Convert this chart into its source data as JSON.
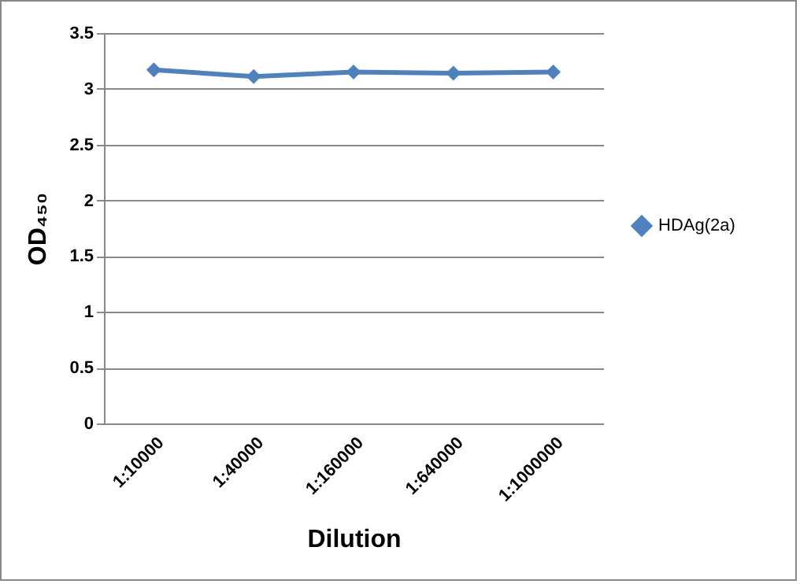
{
  "chart_data": {
    "type": "line",
    "xlabel": "Dilution",
    "ylabel": "OD₄₅₀",
    "categories": [
      "1:10000",
      "1:40000",
      "1:160000",
      "1:640000",
      "1:1000000"
    ],
    "series": [
      {
        "name": "HDAg(2a)",
        "color": "#4f81bd",
        "values": [
          3.17,
          3.11,
          3.15,
          3.14,
          3.15
        ]
      }
    ],
    "ylim": [
      0,
      3.5
    ],
    "yticks": [
      0,
      0.5,
      1,
      1.5,
      2,
      2.5,
      3,
      3.5
    ],
    "grid": "y",
    "legend": "right",
    "marker": "diamond"
  }
}
